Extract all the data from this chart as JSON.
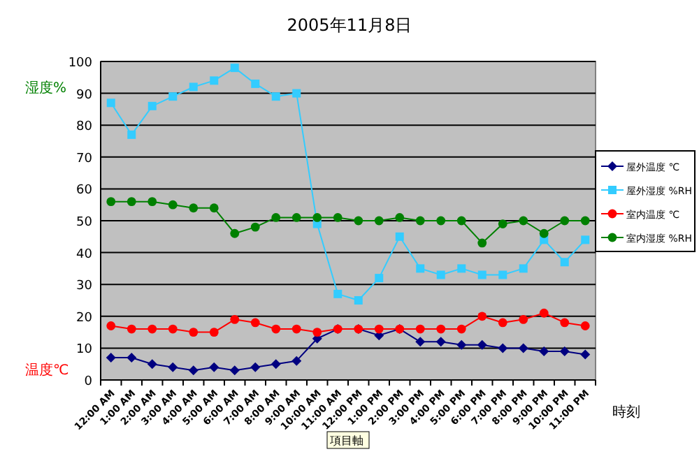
{
  "chart_data": {
    "type": "line",
    "title": "2005年11月8日",
    "xlabel": "時刻",
    "categories": [
      "12:00 AM",
      "1:00 AM",
      "2:00 AM",
      "3:00 AM",
      "4:00 AM",
      "5:00 AM",
      "6:00 AM",
      "7:00 AM",
      "8:00 AM",
      "9:00 AM",
      "10:00 AM",
      "11:00 AM",
      "12:00 PM",
      "1:00 PM",
      "2:00 PM",
      "3:00 PM",
      "4:00 PM",
      "5:00 PM",
      "6:00 PM",
      "7:00 PM",
      "8:00 PM",
      "9:00 PM",
      "10:00 PM",
      "11:00 PM"
    ],
    "series": [
      {
        "name": "屋外温度 ℃",
        "color": "#000080",
        "marker": "diamond",
        "values": [
          7,
          7,
          5,
          4,
          3,
          4,
          3,
          4,
          5,
          6,
          13,
          16,
          16,
          14,
          16,
          12,
          12,
          11,
          11,
          10,
          10,
          9,
          9,
          8
        ]
      },
      {
        "name": "屋外湿度 %RH",
        "color": "#33ccff",
        "marker": "square",
        "values": [
          87,
          77,
          86,
          89,
          92,
          94,
          98,
          93,
          89,
          90,
          49,
          27,
          25,
          32,
          45,
          35,
          33,
          35,
          33,
          33,
          35,
          44,
          37,
          44
        ]
      },
      {
        "name": "室内温度 ℃",
        "color": "#ff0000",
        "marker": "circle",
        "values": [
          17,
          16,
          16,
          16,
          15,
          15,
          19,
          18,
          16,
          16,
          15,
          16,
          16,
          16,
          16,
          16,
          16,
          16,
          20,
          18,
          19,
          21,
          18,
          17
        ]
      },
      {
        "name": "室内湿度 %RH",
        "color": "#008000",
        "marker": "circle",
        "values": [
          56,
          56,
          56,
          55,
          54,
          54,
          46,
          48,
          51,
          51,
          51,
          51,
          50,
          50,
          51,
          50,
          50,
          50,
          43,
          49,
          50,
          46,
          50,
          50
        ]
      }
    ],
    "ylim": [
      0,
      100
    ],
    "yticks": [
      0,
      10,
      20,
      30,
      40,
      50,
      60,
      70,
      80,
      90,
      100
    ],
    "grid": "y",
    "legend": "right",
    "annotations": [
      "湿度%",
      "温度℃",
      "項目軸"
    ]
  }
}
